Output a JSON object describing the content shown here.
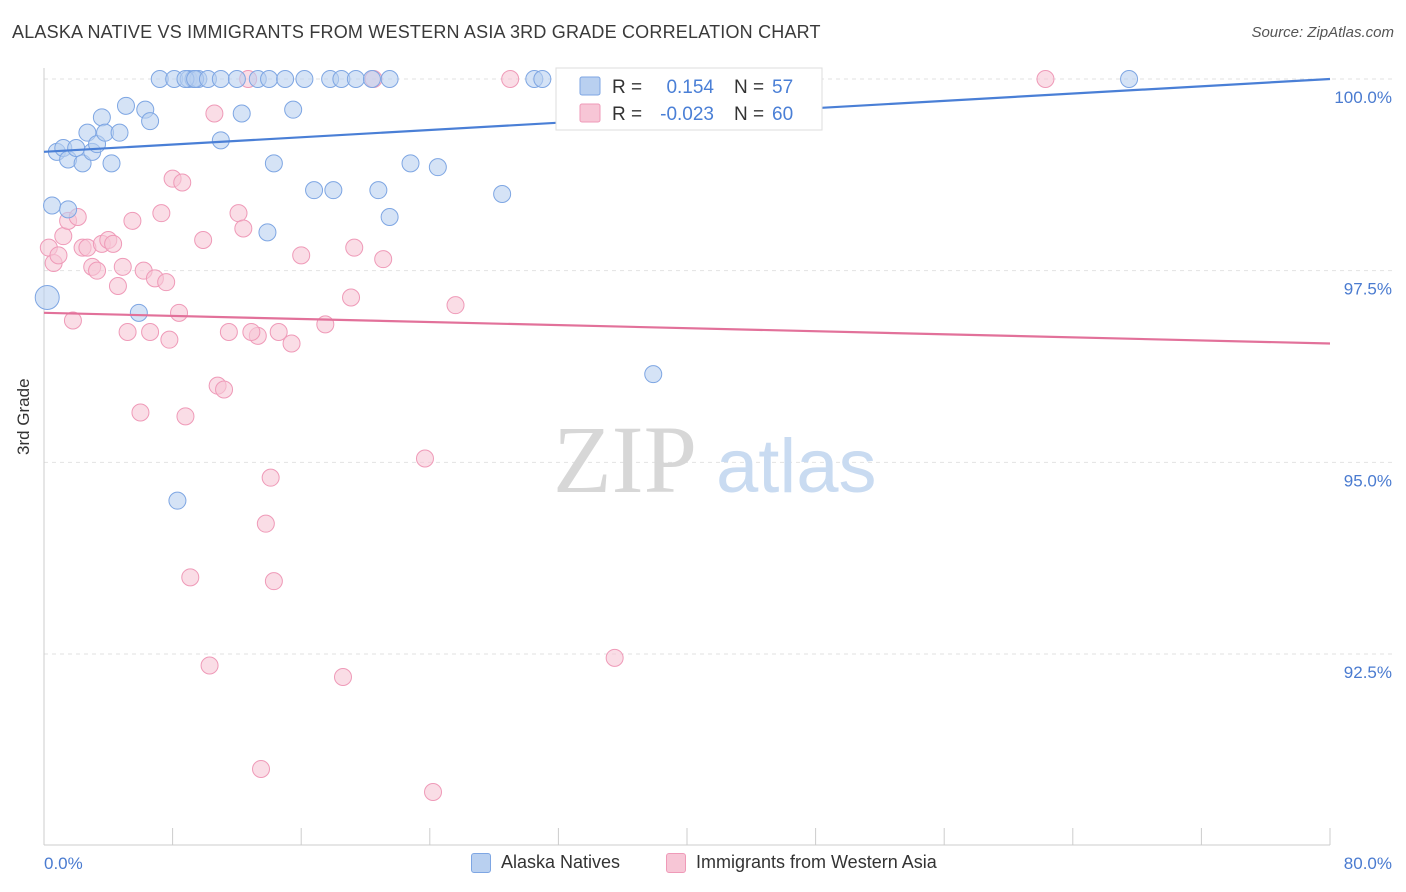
{
  "title": "ALASKA NATIVE VS IMMIGRANTS FROM WESTERN ASIA 3RD GRADE CORRELATION CHART",
  "source": "Source: ZipAtlas.com",
  "watermark": {
    "zip": "ZIP",
    "atlas": "atlas"
  },
  "colors": {
    "blue": "#4a7fd6",
    "blue_fill": "#b9d0f0",
    "blue_stroke": "#7ea6e3",
    "pink": "#e2719a",
    "pink_fill": "#f7c6d6",
    "pink_stroke": "#ef9ab8",
    "tick_text": "#4a7bd0",
    "grid": "#e2e2e2"
  },
  "stats": {
    "row1": {
      "r_label": "R =",
      "r_value": "0.154",
      "n_label": "N =",
      "n_value": "57"
    },
    "row2": {
      "r_label": "R =",
      "r_value": "-0.023",
      "n_label": "N =",
      "n_value": "60"
    }
  },
  "legend": {
    "blue": "Alaska Natives",
    "pink": "Immigrants from Western Asia"
  },
  "chart_data": {
    "type": "scatter",
    "title": "ALASKA NATIVE VS IMMIGRANTS FROM WESTERN ASIA 3RD GRADE CORRELATION CHART",
    "xlabel": "",
    "ylabel": "3rd Grade",
    "xlim": [
      0,
      80
    ],
    "ylim": [
      89.8,
      100.5
    ],
    "x_tick_labels": [
      "0.0%",
      "80.0%"
    ],
    "y_ticks": [
      100.0,
      97.5,
      95.0,
      92.5
    ],
    "y_tick_labels": [
      "100.0%",
      "97.5%",
      "95.0%",
      "92.5%"
    ],
    "grid": true,
    "legend_position": "bottom",
    "series": [
      {
        "name": "Alaska Natives",
        "color": "#4a7fd6",
        "trend": {
          "x": [
            0,
            80
          ],
          "y": [
            99.05,
            100.0
          ]
        },
        "points": [
          [
            0.2,
            97.15
          ],
          [
            0.5,
            98.35
          ],
          [
            0.8,
            99.05
          ],
          [
            1.2,
            99.1
          ],
          [
            1.5,
            98.95
          ],
          [
            2.0,
            99.1
          ],
          [
            2.4,
            98.9
          ],
          [
            2.7,
            99.3
          ],
          [
            3.0,
            99.05
          ],
          [
            3.3,
            99.15
          ],
          [
            3.6,
            99.5
          ],
          [
            3.8,
            99.3
          ],
          [
            4.2,
            98.9
          ],
          [
            4.7,
            99.3
          ],
          [
            5.1,
            99.65
          ],
          [
            6.3,
            99.6
          ],
          [
            6.6,
            99.45
          ],
          [
            7.2,
            100.0
          ],
          [
            8.1,
            100.0
          ],
          [
            9.0,
            100.0
          ],
          [
            9.3,
            100.0
          ],
          [
            9.6,
            100.0
          ],
          [
            8.8,
            100.0
          ],
          [
            9.4,
            100.0
          ],
          [
            10.2,
            100.0
          ],
          [
            11.0,
            100.0
          ],
          [
            12.0,
            100.0
          ],
          [
            12.3,
            99.55
          ],
          [
            13.3,
            100.0
          ],
          [
            14.0,
            100.0
          ],
          [
            15.0,
            100.0
          ],
          [
            16.2,
            100.0
          ],
          [
            17.8,
            100.0
          ],
          [
            18.5,
            100.0
          ],
          [
            19.4,
            100.0
          ],
          [
            20.4,
            100.0
          ],
          [
            21.5,
            100.0
          ],
          [
            11.0,
            99.2
          ],
          [
            14.3,
            98.9
          ],
          [
            15.5,
            99.6
          ],
          [
            16.8,
            98.55
          ],
          [
            18.0,
            98.55
          ],
          [
            20.8,
            98.55
          ],
          [
            21.5,
            98.2
          ],
          [
            22.8,
            98.9
          ],
          [
            24.5,
            98.85
          ],
          [
            28.5,
            98.5
          ],
          [
            30.5,
            100.0
          ],
          [
            35.0,
            100.0
          ],
          [
            41.5,
            100.0
          ],
          [
            67.5,
            100.0
          ],
          [
            13.9,
            98.0
          ],
          [
            5.9,
            96.95
          ],
          [
            8.3,
            94.5
          ],
          [
            37.9,
            96.15
          ],
          [
            1.5,
            98.3
          ],
          [
            31.0,
            100.0
          ]
        ]
      },
      {
        "name": "Immigrants from Western Asia",
        "color": "#e2719a",
        "trend": {
          "x": [
            0,
            80
          ],
          "y": [
            96.95,
            96.55
          ]
        },
        "points": [
          [
            0.3,
            97.8
          ],
          [
            0.6,
            97.6
          ],
          [
            1.2,
            97.95
          ],
          [
            1.5,
            98.15
          ],
          [
            1.8,
            96.85
          ],
          [
            2.1,
            98.2
          ],
          [
            2.4,
            97.8
          ],
          [
            2.7,
            97.8
          ],
          [
            3.0,
            97.55
          ],
          [
            3.3,
            97.5
          ],
          [
            3.6,
            97.85
          ],
          [
            4.0,
            97.9
          ],
          [
            4.3,
            97.85
          ],
          [
            4.6,
            97.3
          ],
          [
            4.9,
            97.55
          ],
          [
            5.2,
            96.7
          ],
          [
            5.5,
            98.15
          ],
          [
            6.0,
            95.65
          ],
          [
            6.2,
            97.5
          ],
          [
            6.6,
            96.7
          ],
          [
            6.9,
            97.4
          ],
          [
            7.3,
            98.25
          ],
          [
            7.6,
            97.35
          ],
          [
            7.8,
            96.6
          ],
          [
            8.0,
            98.7
          ],
          [
            8.4,
            96.95
          ],
          [
            8.6,
            98.65
          ],
          [
            8.8,
            95.6
          ],
          [
            9.1,
            93.5
          ],
          [
            9.9,
            97.9
          ],
          [
            10.3,
            92.35
          ],
          [
            10.6,
            99.55
          ],
          [
            10.8,
            96.0
          ],
          [
            11.2,
            95.95
          ],
          [
            11.5,
            96.7
          ],
          [
            12.1,
            98.25
          ],
          [
            12.4,
            98.05
          ],
          [
            12.7,
            100.0
          ],
          [
            13.3,
            96.65
          ],
          [
            13.5,
            91.0
          ],
          [
            13.8,
            94.2
          ],
          [
            14.1,
            94.8
          ],
          [
            14.3,
            93.45
          ],
          [
            14.6,
            96.7
          ],
          [
            15.4,
            96.55
          ],
          [
            16.0,
            97.7
          ],
          [
            17.5,
            96.8
          ],
          [
            18.6,
            92.2
          ],
          [
            19.1,
            97.15
          ],
          [
            19.3,
            97.8
          ],
          [
            21.1,
            97.65
          ],
          [
            23.7,
            95.05
          ],
          [
            24.2,
            90.7
          ],
          [
            25.6,
            97.05
          ],
          [
            29.0,
            100.0
          ],
          [
            35.5,
            92.45
          ],
          [
            62.3,
            100.0
          ],
          [
            20.5,
            100.0
          ],
          [
            12.9,
            96.7
          ],
          [
            0.9,
            97.7
          ]
        ]
      }
    ]
  }
}
